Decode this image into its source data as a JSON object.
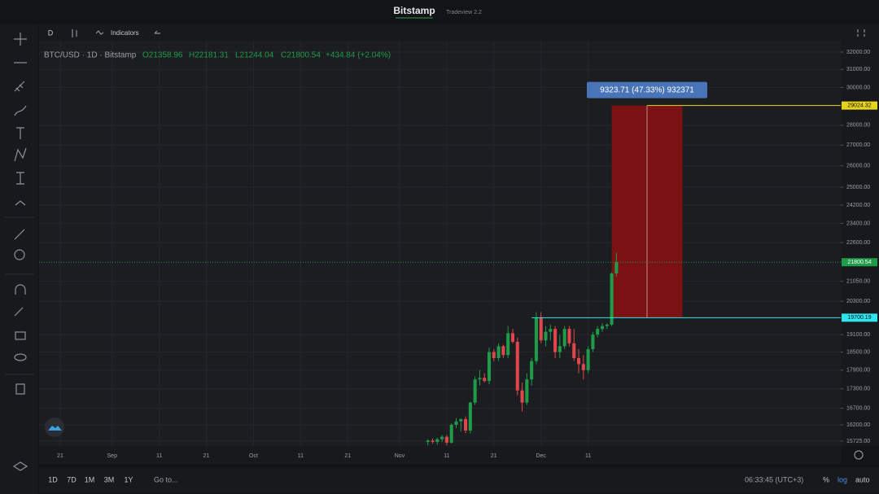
{
  "topbar": {
    "brand": "Bitstamp",
    "version": "Tradeview 2.2"
  },
  "toolbar": {
    "interval": "D",
    "indicators": "Indicators"
  },
  "legend": {
    "symbol": "BTC/USD · 1D · Bitstamp",
    "open": "O21358.96",
    "high": "H22181.31",
    "low": "L21244.04",
    "close": "C21800.54",
    "change": "+434.84 (+2.04%)"
  },
  "chart_data": {
    "type": "candlestick",
    "log_scale": true,
    "grid": true,
    "up_color": "#1f9c4a",
    "down_color": "#e0474c",
    "x": [
      98,
      99,
      100,
      101,
      102,
      103,
      104,
      105,
      106,
      107,
      108,
      109,
      110,
      111,
      112,
      113,
      114,
      115,
      116,
      117,
      118,
      119,
      120,
      121,
      122,
      123,
      124,
      125,
      126,
      127,
      128,
      129,
      130,
      131,
      132,
      133,
      134,
      135,
      136,
      137,
      138
    ],
    "open": [
      15700,
      15740,
      15700,
      15780,
      15850,
      15680,
      16200,
      16300,
      16370,
      16030,
      16870,
      17600,
      17650,
      17550,
      18500,
      18300,
      18700,
      18400,
      19150,
      18850,
      17250,
      16870,
      17600,
      18200,
      19700,
      18900,
      19200,
      19300,
      18500,
      18700,
      19300,
      18800,
      18300,
      18100,
      17900,
      18600,
      19100,
      19300,
      19400,
      19450,
      21358.96
    ],
    "high": [
      15780,
      15800,
      15820,
      15900,
      15900,
      16250,
      16400,
      16400,
      16450,
      16900,
      17700,
      17900,
      17800,
      18650,
      18600,
      18800,
      18750,
      19400,
      19300,
      19000,
      17500,
      17800,
      18300,
      19900,
      19900,
      19400,
      19450,
      19400,
      19100,
      19400,
      19400,
      19300,
      18600,
      18400,
      18700,
      19200,
      19400,
      19500,
      19500,
      21400,
      22181.31
    ],
    "low": [
      15600,
      15650,
      15620,
      15700,
      15600,
      15650,
      16100,
      16000,
      15950,
      15950,
      16800,
      17400,
      17500,
      17450,
      18200,
      18200,
      18300,
      18300,
      18800,
      17100,
      16600,
      16800,
      17400,
      18100,
      18800,
      18700,
      18900,
      18300,
      18300,
      18600,
      18700,
      18200,
      17800,
      17600,
      17800,
      18500,
      19000,
      19200,
      19300,
      19400,
      21244.04
    ],
    "close": [
      15740,
      15700,
      15780,
      15850,
      15680,
      16200,
      16300,
      16370,
      16030,
      16870,
      17600,
      17650,
      17550,
      18500,
      18300,
      18700,
      18400,
      19150,
      18850,
      17250,
      16870,
      17600,
      18200,
      19700,
      18900,
      19200,
      19300,
      18500,
      18700,
      19300,
      18800,
      18300,
      18100,
      17900,
      18600,
      19100,
      19300,
      19400,
      19450,
      21360,
      21800.54
    ],
    "xlim": [
      15.5,
      185.6
    ],
    "xticks": [
      {
        "value": 20,
        "label": "21"
      },
      {
        "value": 31,
        "label": "Sep"
      },
      {
        "value": 41,
        "label": "11"
      },
      {
        "value": 51,
        "label": "21"
      },
      {
        "value": 61,
        "label": "Oct"
      },
      {
        "value": 71,
        "label": "11"
      },
      {
        "value": 81,
        "label": "21"
      },
      {
        "value": 92,
        "label": "Nov"
      },
      {
        "value": 102,
        "label": "11"
      },
      {
        "value": 112,
        "label": "21"
      },
      {
        "value": 122,
        "label": "Dec"
      },
      {
        "value": 132,
        "label": "11"
      }
    ],
    "ylim": [
      15585,
      32673
    ],
    "yticks": [
      {
        "value": 32000,
        "label": "32000.00"
      },
      {
        "value": 31000,
        "label": "31000.00"
      },
      {
        "value": 30000,
        "label": "30000.00"
      },
      {
        "value": 28000,
        "label": "28000.00"
      },
      {
        "value": 27000,
        "label": "27000.00"
      },
      {
        "value": 26000,
        "label": "26000.00"
      },
      {
        "value": 25000,
        "label": "25000.00"
      },
      {
        "value": 24200,
        "label": "24200.00"
      },
      {
        "value": 23400,
        "label": "23400.00"
      },
      {
        "value": 22600,
        "label": "22600.00"
      },
      {
        "value": 21050,
        "label": "21050.00"
      },
      {
        "value": 20300,
        "label": "20300.00"
      },
      {
        "value": 19100,
        "label": "19100.00"
      },
      {
        "value": 18500,
        "label": "18500.00"
      },
      {
        "value": 17900,
        "label": "17900.00"
      },
      {
        "value": 17300,
        "label": "17300.00"
      },
      {
        "value": 16700,
        "label": "16700.00"
      },
      {
        "value": 16200,
        "label": "16200.00"
      },
      {
        "value": 15725,
        "label": "15725.00"
      }
    ],
    "price_lines": [
      {
        "value": 29024.32,
        "color": "#e8d31c",
        "style": "solid"
      },
      {
        "value": 21800.54,
        "color": "#1f9c4a",
        "style": "dotted"
      },
      {
        "value": 19700.19,
        "color": "#2fe3f0",
        "style": "solid"
      }
    ],
    "measure": {
      "label": "9323.71 (47.33%) 932371",
      "color": "#8b1010",
      "x_range": [
        137,
        152
      ]
    }
  },
  "bottombar": {
    "ranges": [
      "1D",
      "7D",
      "1M",
      "3M",
      "1Y"
    ],
    "goto": "Go to...",
    "clock": "06:33:45 (UTC+3)",
    "percent": "%",
    "log": "log",
    "auto": "auto"
  }
}
